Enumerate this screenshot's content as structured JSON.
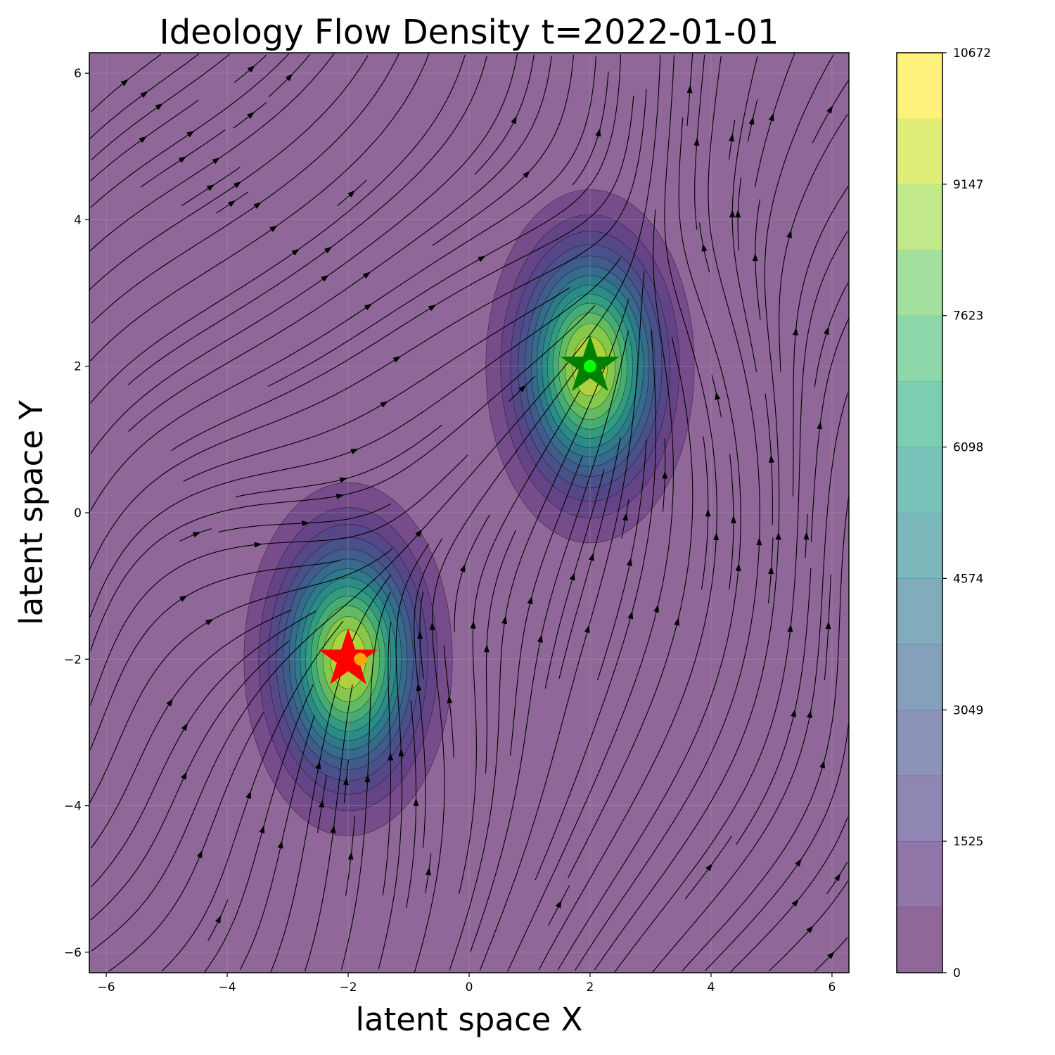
{
  "chart_data": {
    "type": "heatmap",
    "subtype": "filled-contour-with-streamlines",
    "title": "Ideology Flow Density t=2022-01-01",
    "xlabel": "latent space X",
    "ylabel": "latent space Y",
    "xlim": [
      -6.28,
      6.28
    ],
    "ylim": [
      -6.28,
      6.28
    ],
    "xticks": [
      -6,
      -4,
      -2,
      0,
      2,
      4,
      6
    ],
    "yticks": [
      -6,
      -4,
      -2,
      0,
      2,
      4,
      6
    ],
    "xtick_labels": [
      "−6",
      "−4",
      "−2",
      "0",
      "2",
      "4",
      "6"
    ],
    "ytick_labels": [
      "−6",
      "−4",
      "−2",
      "0",
      "2",
      "4",
      "6"
    ],
    "grid": true,
    "colormap": "viridis",
    "alpha": 0.6,
    "colorbar": {
      "min": 0,
      "max": 10672,
      "levels": 14,
      "ticks": [
        0,
        1525,
        3049,
        4574,
        6098,
        7623,
        9147,
        10672
      ],
      "tick_labels": [
        "0",
        "1525",
        "3049",
        "4574",
        "6098",
        "7623",
        "9147",
        "10672"
      ]
    },
    "density_peaks": [
      {
        "x": 2.0,
        "y": 2.0,
        "sx": 0.75,
        "sy": 1.05,
        "peak": 10672
      },
      {
        "x": -2.0,
        "y": -2.0,
        "sx": 0.75,
        "sy": 1.05,
        "peak": 10672
      }
    ],
    "markers": [
      {
        "type": "star",
        "x": 2.0,
        "y": 2.0,
        "color": "#008000"
      },
      {
        "type": "dot",
        "x": 2.0,
        "y": 2.0,
        "color": "#00ff00"
      },
      {
        "type": "star",
        "x": -2.0,
        "y": -2.0,
        "color": "#ff0000"
      },
      {
        "type": "dot",
        "x": -1.8,
        "y": -2.0,
        "color": "#ffa500"
      }
    ],
    "streamline_color": "#000000"
  }
}
